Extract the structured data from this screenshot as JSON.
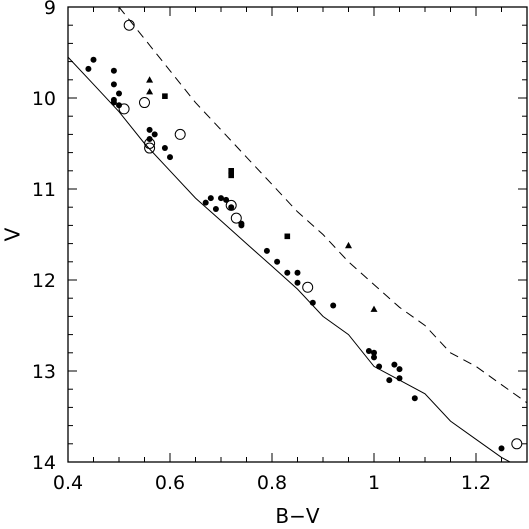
{
  "chart_data": {
    "type": "scatter",
    "title": "",
    "xlabel": "B−V",
    "ylabel": "V",
    "xlim": [
      0.4,
      1.3
    ],
    "ylim": [
      14,
      9
    ],
    "y_inverted": true,
    "grid": false,
    "x_ticks": [
      0.4,
      0.6,
      0.8,
      1.0,
      1.2
    ],
    "x_tick_labels": [
      "0.4",
      "0.6",
      "0.8",
      "1",
      "1.2"
    ],
    "y_ticks": [
      9,
      10,
      11,
      12,
      13,
      14
    ],
    "y_tick_labels": [
      "9",
      "10",
      "11",
      "12",
      "13",
      "14"
    ],
    "lines": [
      {
        "style": "solid",
        "x": [
          0.4,
          0.45,
          0.5,
          0.55,
          0.6,
          0.65,
          0.7,
          0.75,
          0.8,
          0.85,
          0.9,
          0.95,
          1.0,
          1.05,
          1.1,
          1.15,
          1.2,
          1.25,
          1.3
        ],
        "y": [
          9.55,
          9.85,
          10.15,
          10.5,
          10.8,
          11.1,
          11.35,
          11.6,
          11.85,
          12.1,
          12.4,
          12.6,
          12.95,
          13.1,
          13.25,
          13.55,
          13.75,
          13.95,
          14.1
        ]
      },
      {
        "style": "dashed",
        "x": [
          0.5,
          0.55,
          0.6,
          0.65,
          0.7,
          0.75,
          0.8,
          0.85,
          0.9,
          0.95,
          1.0,
          1.05,
          1.1,
          1.15,
          1.2,
          1.25,
          1.3
        ],
        "y": [
          9.0,
          9.35,
          9.7,
          10.05,
          10.35,
          10.65,
          10.95,
          11.25,
          11.5,
          11.8,
          12.05,
          12.3,
          12.5,
          12.8,
          12.95,
          13.15,
          13.35
        ]
      }
    ],
    "series": [
      {
        "marker": "filled-circle",
        "points": [
          [
            0.44,
            9.68
          ],
          [
            0.45,
            9.58
          ],
          [
            0.49,
            9.7
          ],
          [
            0.49,
            9.85
          ],
          [
            0.49,
            10.02
          ],
          [
            0.49,
            10.05
          ],
          [
            0.5,
            9.95
          ],
          [
            0.5,
            10.08
          ],
          [
            0.56,
            10.35
          ],
          [
            0.57,
            10.4
          ],
          [
            0.56,
            10.45
          ],
          [
            0.59,
            10.55
          ],
          [
            0.6,
            10.65
          ],
          [
            0.67,
            11.15
          ],
          [
            0.68,
            11.1
          ],
          [
            0.69,
            11.22
          ],
          [
            0.7,
            11.1
          ],
          [
            0.71,
            11.12
          ],
          [
            0.72,
            11.2
          ],
          [
            0.74,
            11.38
          ],
          [
            0.74,
            11.4
          ],
          [
            0.79,
            11.68
          ],
          [
            0.81,
            11.8
          ],
          [
            0.83,
            11.92
          ],
          [
            0.85,
            11.92
          ],
          [
            0.85,
            12.03
          ],
          [
            0.88,
            12.25
          ],
          [
            0.92,
            12.28
          ],
          [
            0.99,
            12.78
          ],
          [
            1.0,
            12.8
          ],
          [
            1.0,
            12.85
          ],
          [
            1.01,
            12.95
          ],
          [
            1.03,
            13.1
          ],
          [
            1.04,
            12.93
          ],
          [
            1.05,
            12.98
          ],
          [
            1.05,
            13.08
          ],
          [
            1.08,
            13.3
          ],
          [
            1.25,
            13.85
          ]
        ]
      },
      {
        "marker": "open-circle",
        "points": [
          [
            0.52,
            9.2
          ],
          [
            0.55,
            10.05
          ],
          [
            0.51,
            10.12
          ],
          [
            0.56,
            10.5
          ],
          [
            0.56,
            10.55
          ],
          [
            0.62,
            10.4
          ],
          [
            0.72,
            11.18
          ],
          [
            0.73,
            11.32
          ],
          [
            0.87,
            12.08
          ],
          [
            1.28,
            13.8
          ]
        ]
      },
      {
        "marker": "filled-triangle",
        "points": [
          [
            0.56,
            9.8
          ],
          [
            0.56,
            9.93
          ],
          [
            0.95,
            11.62
          ],
          [
            1.0,
            12.32
          ]
        ]
      },
      {
        "marker": "filled-square",
        "points": [
          [
            0.59,
            9.98
          ],
          [
            0.72,
            10.8
          ],
          [
            0.72,
            10.85
          ],
          [
            0.83,
            11.52
          ]
        ]
      }
    ]
  }
}
